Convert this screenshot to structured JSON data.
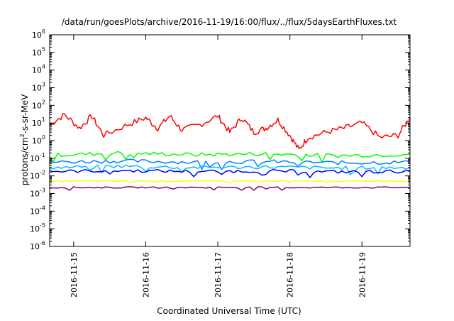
{
  "chart_data": {
    "type": "line",
    "title": "/data/run/goesPlots/archive/2016-11-19/16:00/flux/../flux/5daysEarthFluxes.txt",
    "xlabel": "Coordinated Universal Time (UTC)",
    "ylabel": "protons/cm2-s-sr-MeV",
    "ylabel_parts": {
      "pre": "protons/cm",
      "sup": "2",
      "post": "-s-sr-MeV"
    },
    "y_scale": "log",
    "ylim_exponent": [
      -6,
      6
    ],
    "y_ticks": [
      {
        "base": "10",
        "exp": "6",
        "value": 1000000.0
      },
      {
        "base": "10",
        "exp": "5",
        "value": 100000.0
      },
      {
        "base": "10",
        "exp": "4",
        "value": 10000.0
      },
      {
        "base": "10",
        "exp": "3",
        "value": 1000.0
      },
      {
        "base": "10",
        "exp": "2",
        "value": 100.0
      },
      {
        "base": "10",
        "exp": "1",
        "value": 10.0
      },
      {
        "base": "10",
        "exp": "0",
        "value": 1
      },
      {
        "base": "10",
        "exp": "-1",
        "value": 0.1
      },
      {
        "base": "10",
        "exp": "-2",
        "value": 0.01
      },
      {
        "base": "10",
        "exp": "-3",
        "value": 0.001
      },
      {
        "base": "10",
        "exp": "-4",
        "value": 0.0001
      },
      {
        "base": "10",
        "exp": "-5",
        "value": 1e-05
      },
      {
        "base": "10",
        "exp": "-6",
        "value": 1e-06
      }
    ],
    "x_range_days": [
      "2016-11-14T16:00",
      "2016-11-19T16:00"
    ],
    "x_ticks": [
      "2016-11-15",
      "2016-11-16",
      "2016-11-17",
      "2016-11-18",
      "2016-11-19"
    ],
    "grid": false,
    "legend": "none",
    "colors": [
      "#ff0000",
      "#00ff00",
      "#0080ff",
      "#00c0ff",
      "#0000ff",
      "#ffff00",
      "#880066"
    ],
    "series": [
      {
        "color": "#ff0000",
        "x": [
          "2016-11-14T16:00",
          "2016-11-14T21:00",
          "2016-11-15T02:00",
          "2016-11-15T06:00",
          "2016-11-15T10:00",
          "2016-11-15T18:00",
          "2016-11-16T00:00",
          "2016-11-16T04:00",
          "2016-11-16T08:00",
          "2016-11-16T12:00",
          "2016-11-16T18:00",
          "2016-11-17T00:00",
          "2016-11-17T04:00",
          "2016-11-17T08:00",
          "2016-11-17T12:00",
          "2016-11-17T16:00",
          "2016-11-17T20:00",
          "2016-11-18T00:00",
          "2016-11-18T03:00",
          "2016-11-18T06:00",
          "2016-11-18T12:00",
          "2016-11-18T18:00",
          "2016-11-19T00:00",
          "2016-11-19T06:00",
          "2016-11-19T12:00",
          "2016-11-19T16:00"
        ],
        "y": [
          8,
          30,
          5,
          25,
          2,
          8,
          20,
          5,
          25,
          4,
          8,
          25,
          3,
          20,
          3,
          5,
          15,
          2,
          0.3,
          1.5,
          3,
          5,
          10,
          1.5,
          2,
          20
        ]
      },
      {
        "color": "#00ff00",
        "x": [
          "2016-11-14T16:00",
          "2016-11-15T16:00",
          "2016-11-16T16:00",
          "2016-11-17T16:00",
          "2016-11-18T16:00",
          "2016-11-19T16:00"
        ],
        "y": [
          0.15,
          0.2,
          0.16,
          0.18,
          0.14,
          0.17
        ]
      },
      {
        "color": "#0080ff",
        "x": [
          "2016-11-14T16:00",
          "2016-11-15T16:00",
          "2016-11-16T16:00",
          "2016-11-17T16:00",
          "2016-11-18T16:00",
          "2016-11-19T16:00"
        ],
        "y": [
          0.06,
          0.07,
          0.06,
          0.065,
          0.055,
          0.06
        ]
      },
      {
        "color": "#00c0ff",
        "x": [
          "2016-11-14T16:00",
          "2016-11-15T16:00",
          "2016-11-16T16:00",
          "2016-11-17T16:00",
          "2016-11-18T16:00",
          "2016-11-19T16:00"
        ],
        "y": [
          0.03,
          0.035,
          0.03,
          0.032,
          0.028,
          0.03
        ]
      },
      {
        "color": "#0000ff",
        "x": [
          "2016-11-14T16:00",
          "2016-11-15T16:00",
          "2016-11-16T16:00",
          "2016-11-17T16:00",
          "2016-11-18T16:00",
          "2016-11-19T16:00"
        ],
        "y": [
          0.018,
          0.02,
          0.018,
          0.019,
          0.017,
          0.018
        ]
      },
      {
        "color": "#ffff00",
        "x": [
          "2016-11-14T16:00",
          "2016-11-15T16:00",
          "2016-11-16T16:00",
          "2016-11-17T16:00",
          "2016-11-18T16:00",
          "2016-11-19T16:00"
        ],
        "y": [
          0.005,
          0.005,
          0.005,
          0.005,
          0.005,
          0.005
        ]
      },
      {
        "color": "#880066",
        "x": [
          "2016-11-14T16:00",
          "2016-11-15T16:00",
          "2016-11-16T16:00",
          "2016-11-17T16:00",
          "2016-11-18T16:00",
          "2016-11-19T16:00"
        ],
        "y": [
          0.0022,
          0.0022,
          0.0022,
          0.0022,
          0.0022,
          0.0022
        ]
      }
    ]
  }
}
